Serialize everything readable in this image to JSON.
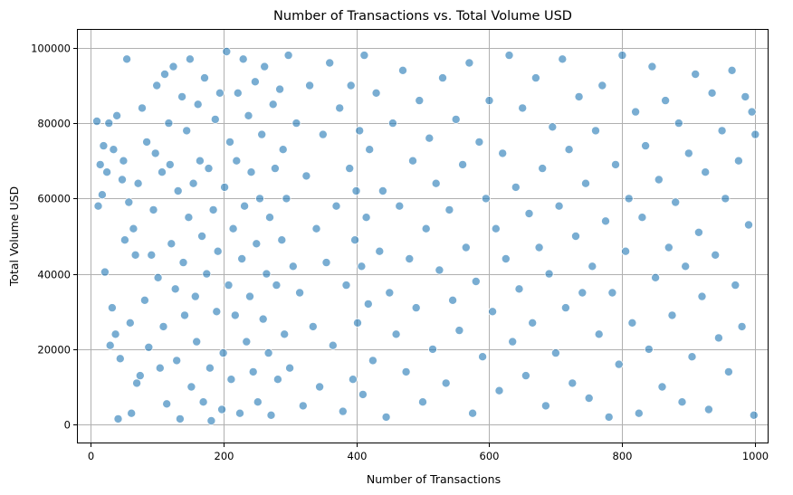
{
  "chart_data": {
    "type": "scatter",
    "title": "Number of Transactions vs. Total Volume USD",
    "xlabel": "Number of Transactions",
    "ylabel": "Total Volume USD",
    "xlim": [
      -20,
      1020
    ],
    "ylim": [
      -5000,
      105000
    ],
    "xticks": [
      0,
      200,
      400,
      600,
      800,
      1000
    ],
    "xtick_labels": [
      "0",
      "200",
      "400",
      "600",
      "800",
      "1000"
    ],
    "yticks": [
      0,
      20000,
      40000,
      60000,
      80000,
      100000
    ],
    "ytick_labels": [
      "0",
      "20000",
      "40000",
      "60000",
      "80000",
      "100000"
    ],
    "grid": true,
    "legend": "none",
    "point_color": "#1f77b4",
    "point_alpha": 0.6,
    "series": [
      {
        "points": [
          [
            10,
            80500
          ],
          [
            12,
            58000
          ],
          [
            15,
            69000
          ],
          [
            18,
            61000
          ],
          [
            20,
            74000
          ],
          [
            22,
            40500
          ],
          [
            25,
            67000
          ],
          [
            28,
            80000
          ],
          [
            30,
            21000
          ],
          [
            33,
            31000
          ],
          [
            35,
            73000
          ],
          [
            38,
            24000
          ],
          [
            40,
            82000
          ],
          [
            42,
            1500
          ],
          [
            45,
            17500
          ],
          [
            48,
            65000
          ],
          [
            50,
            70000
          ],
          [
            52,
            49000
          ],
          [
            55,
            97000
          ],
          [
            58,
            59000
          ],
          [
            60,
            27000
          ],
          [
            62,
            3000
          ],
          [
            65,
            52000
          ],
          [
            68,
            45000
          ],
          [
            70,
            11000
          ],
          [
            72,
            64000
          ],
          [
            75,
            13000
          ],
          [
            78,
            84000
          ],
          [
            82,
            33000
          ],
          [
            85,
            75000
          ],
          [
            88,
            20500
          ],
          [
            92,
            45000
          ],
          [
            95,
            57000
          ],
          [
            98,
            72000
          ],
          [
            100,
            90000
          ],
          [
            102,
            39000
          ],
          [
            105,
            15000
          ],
          [
            108,
            67000
          ],
          [
            110,
            26000
          ],
          [
            112,
            93000
          ],
          [
            115,
            5500
          ],
          [
            118,
            80000
          ],
          [
            120,
            69000
          ],
          [
            122,
            48000
          ],
          [
            125,
            95000
          ],
          [
            128,
            36000
          ],
          [
            130,
            17000
          ],
          [
            132,
            62000
          ],
          [
            135,
            1500
          ],
          [
            138,
            87000
          ],
          [
            140,
            43000
          ],
          [
            142,
            29000
          ],
          [
            145,
            78000
          ],
          [
            148,
            55000
          ],
          [
            150,
            97000
          ],
          [
            152,
            10000
          ],
          [
            155,
            64000
          ],
          [
            158,
            34000
          ],
          [
            160,
            22000
          ],
          [
            162,
            85000
          ],
          [
            165,
            70000
          ],
          [
            168,
            50000
          ],
          [
            170,
            6000
          ],
          [
            172,
            92000
          ],
          [
            175,
            40000
          ],
          [
            178,
            68000
          ],
          [
            180,
            15000
          ],
          [
            182,
            1000
          ],
          [
            185,
            57000
          ],
          [
            188,
            81000
          ],
          [
            190,
            30000
          ],
          [
            192,
            46000
          ],
          [
            195,
            88000
          ],
          [
            198,
            4000
          ],
          [
            200,
            19000
          ],
          [
            202,
            63000
          ],
          [
            205,
            99000
          ],
          [
            208,
            37000
          ],
          [
            210,
            75000
          ],
          [
            212,
            12000
          ],
          [
            215,
            52000
          ],
          [
            218,
            29000
          ],
          [
            220,
            70000
          ],
          [
            222,
            88000
          ],
          [
            225,
            3000
          ],
          [
            228,
            44000
          ],
          [
            230,
            97000
          ],
          [
            232,
            58000
          ],
          [
            235,
            22000
          ],
          [
            238,
            82000
          ],
          [
            240,
            34000
          ],
          [
            242,
            67000
          ],
          [
            245,
            14000
          ],
          [
            248,
            91000
          ],
          [
            250,
            48000
          ],
          [
            252,
            6000
          ],
          [
            255,
            60000
          ],
          [
            258,
            77000
          ],
          [
            260,
            28000
          ],
          [
            262,
            95000
          ],
          [
            265,
            40000
          ],
          [
            268,
            19000
          ],
          [
            270,
            55000
          ],
          [
            272,
            2500
          ],
          [
            275,
            85000
          ],
          [
            278,
            68000
          ],
          [
            280,
            37000
          ],
          [
            282,
            12000
          ],
          [
            285,
            89000
          ],
          [
            288,
            49000
          ],
          [
            290,
            73000
          ],
          [
            292,
            24000
          ],
          [
            295,
            60000
          ],
          [
            298,
            98000
          ],
          [
            300,
            15000
          ],
          [
            305,
            42000
          ],
          [
            310,
            80000
          ],
          [
            315,
            35000
          ],
          [
            320,
            5000
          ],
          [
            325,
            66000
          ],
          [
            330,
            90000
          ],
          [
            335,
            26000
          ],
          [
            340,
            52000
          ],
          [
            345,
            10000
          ],
          [
            350,
            77000
          ],
          [
            355,
            43000
          ],
          [
            360,
            96000
          ],
          [
            365,
            21000
          ],
          [
            370,
            58000
          ],
          [
            375,
            84000
          ],
          [
            380,
            3500
          ],
          [
            385,
            37000
          ],
          [
            390,
            68000
          ],
          [
            392,
            90000
          ],
          [
            395,
            12000
          ],
          [
            398,
            49000
          ],
          [
            400,
            62000
          ],
          [
            402,
            27000
          ],
          [
            405,
            78000
          ],
          [
            408,
            42000
          ],
          [
            410,
            8000
          ],
          [
            412,
            98000
          ],
          [
            415,
            55000
          ],
          [
            418,
            32000
          ],
          [
            420,
            73000
          ],
          [
            425,
            17000
          ],
          [
            430,
            88000
          ],
          [
            435,
            46000
          ],
          [
            440,
            62000
          ],
          [
            445,
            2000
          ],
          [
            450,
            35000
          ],
          [
            455,
            80000
          ],
          [
            460,
            24000
          ],
          [
            465,
            58000
          ],
          [
            470,
            94000
          ],
          [
            475,
            14000
          ],
          [
            480,
            44000
          ],
          [
            485,
            70000
          ],
          [
            490,
            31000
          ],
          [
            495,
            86000
          ],
          [
            500,
            6000
          ],
          [
            505,
            52000
          ],
          [
            510,
            76000
          ],
          [
            515,
            20000
          ],
          [
            520,
            64000
          ],
          [
            525,
            41000
          ],
          [
            530,
            92000
          ],
          [
            535,
            11000
          ],
          [
            540,
            57000
          ],
          [
            545,
            33000
          ],
          [
            550,
            81000
          ],
          [
            555,
            25000
          ],
          [
            560,
            69000
          ],
          [
            565,
            47000
          ],
          [
            570,
            96000
          ],
          [
            575,
            3000
          ],
          [
            580,
            38000
          ],
          [
            585,
            75000
          ],
          [
            590,
            18000
          ],
          [
            595,
            60000
          ],
          [
            600,
            86000
          ],
          [
            605,
            30000
          ],
          [
            610,
            52000
          ],
          [
            615,
            9000
          ],
          [
            620,
            72000
          ],
          [
            625,
            44000
          ],
          [
            630,
            98000
          ],
          [
            635,
            22000
          ],
          [
            640,
            63000
          ],
          [
            645,
            36000
          ],
          [
            650,
            84000
          ],
          [
            655,
            13000
          ],
          [
            660,
            56000
          ],
          [
            665,
            27000
          ],
          [
            670,
            92000
          ],
          [
            675,
            47000
          ],
          [
            680,
            68000
          ],
          [
            685,
            5000
          ],
          [
            690,
            40000
          ],
          [
            695,
            79000
          ],
          [
            700,
            19000
          ],
          [
            705,
            58000
          ],
          [
            710,
            97000
          ],
          [
            715,
            31000
          ],
          [
            720,
            73000
          ],
          [
            725,
            11000
          ],
          [
            730,
            50000
          ],
          [
            735,
            87000
          ],
          [
            740,
            35000
          ],
          [
            745,
            64000
          ],
          [
            750,
            7000
          ],
          [
            755,
            42000
          ],
          [
            760,
            78000
          ],
          [
            765,
            24000
          ],
          [
            770,
            90000
          ],
          [
            775,
            54000
          ],
          [
            780,
            2000
          ],
          [
            785,
            35000
          ],
          [
            790,
            69000
          ],
          [
            795,
            16000
          ],
          [
            800,
            98000
          ],
          [
            805,
            46000
          ],
          [
            810,
            60000
          ],
          [
            815,
            27000
          ],
          [
            820,
            83000
          ],
          [
            825,
            3000
          ],
          [
            830,
            55000
          ],
          [
            835,
            74000
          ],
          [
            840,
            20000
          ],
          [
            845,
            95000
          ],
          [
            850,
            39000
          ],
          [
            855,
            65000
          ],
          [
            860,
            10000
          ],
          [
            865,
            86000
          ],
          [
            870,
            47000
          ],
          [
            875,
            29000
          ],
          [
            880,
            59000
          ],
          [
            885,
            80000
          ],
          [
            890,
            6000
          ],
          [
            895,
            42000
          ],
          [
            900,
            72000
          ],
          [
            905,
            18000
          ],
          [
            910,
            93000
          ],
          [
            915,
            51000
          ],
          [
            920,
            34000
          ],
          [
            925,
            67000
          ],
          [
            930,
            4000
          ],
          [
            935,
            88000
          ],
          [
            940,
            45000
          ],
          [
            945,
            23000
          ],
          [
            950,
            78000
          ],
          [
            955,
            60000
          ],
          [
            960,
            14000
          ],
          [
            965,
            94000
          ],
          [
            970,
            37000
          ],
          [
            975,
            70000
          ],
          [
            980,
            26000
          ],
          [
            985,
            87000
          ],
          [
            990,
            53000
          ],
          [
            995,
            83000
          ],
          [
            998,
            2500
          ],
          [
            1000,
            77000
          ]
        ]
      }
    ]
  }
}
